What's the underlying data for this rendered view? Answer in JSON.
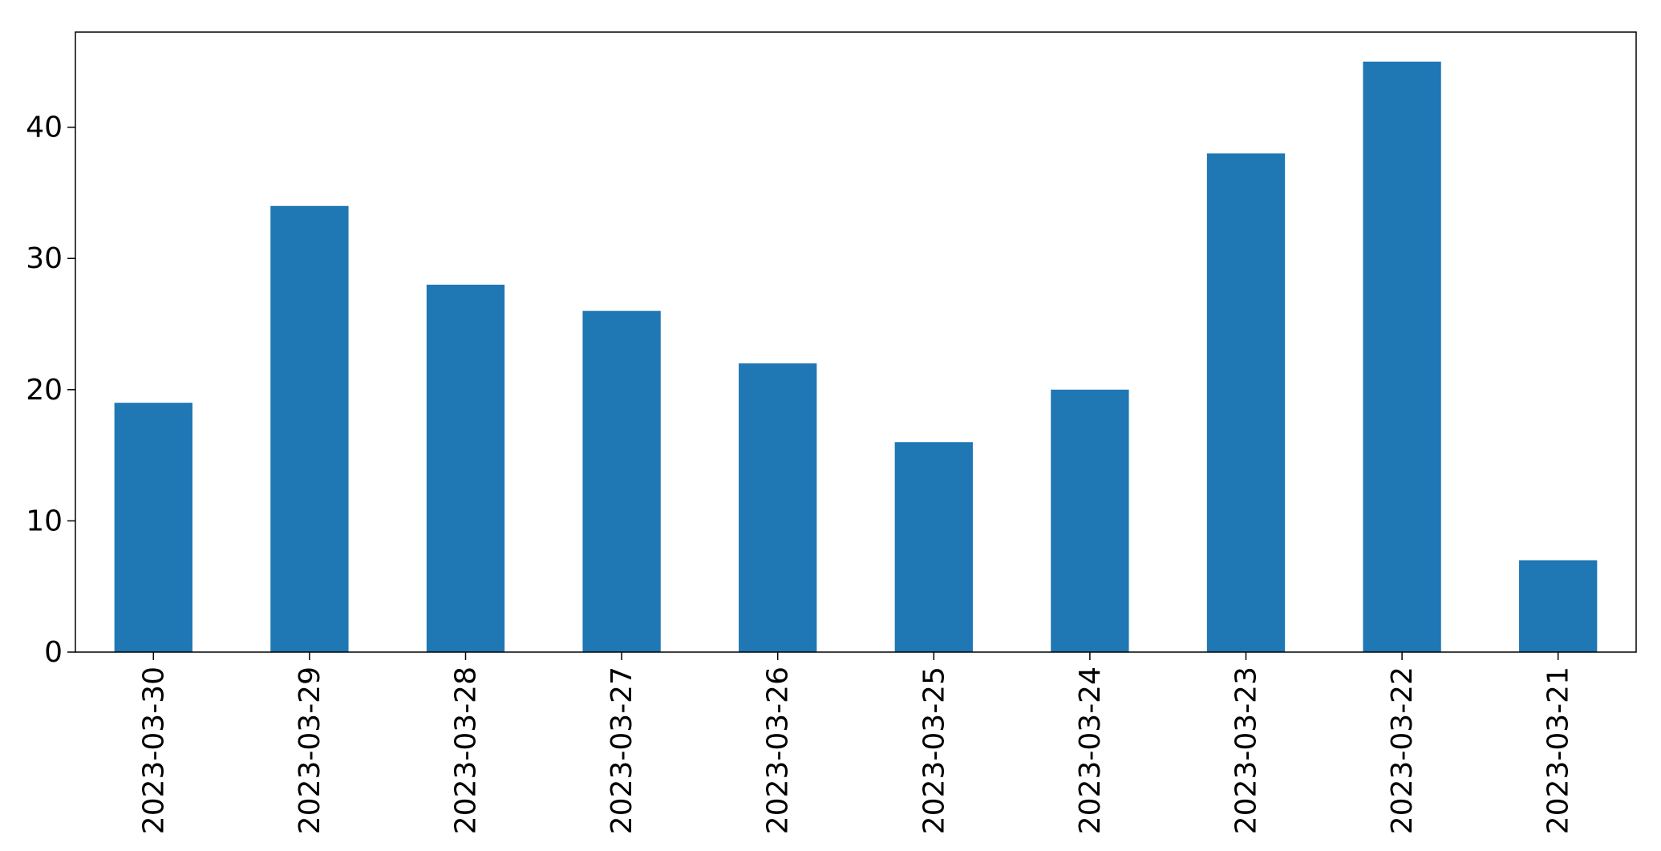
{
  "colors": {
    "bar": "#1f77b4",
    "axis": "#000000",
    "background": "#ffffff"
  },
  "chart_data": {
    "type": "bar",
    "title": "",
    "xlabel": "",
    "ylabel": "",
    "categories": [
      "2023-03-30",
      "2023-03-29",
      "2023-03-28",
      "2023-03-27",
      "2023-03-26",
      "2023-03-25",
      "2023-03-24",
      "2023-03-23",
      "2023-03-22",
      "2023-03-21"
    ],
    "values": [
      19,
      34,
      28,
      26,
      22,
      16,
      20,
      38,
      45,
      7
    ],
    "ylim": [
      0,
      47.25
    ],
    "yticks": [
      0,
      10,
      20,
      30,
      40
    ],
    "grid": false,
    "legend": "none"
  }
}
